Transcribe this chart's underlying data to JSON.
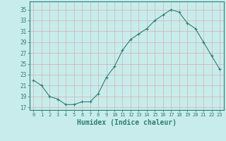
{
  "x": [
    0,
    1,
    2,
    3,
    4,
    5,
    6,
    7,
    8,
    9,
    10,
    11,
    12,
    13,
    14,
    15,
    16,
    17,
    18,
    19,
    20,
    21,
    22,
    23
  ],
  "y": [
    22,
    21,
    19,
    18.5,
    17.5,
    17.5,
    18,
    18,
    19.5,
    22.5,
    24.5,
    27.5,
    29.5,
    30.5,
    31.5,
    33,
    34,
    35,
    34.5,
    32.5,
    31.5,
    29,
    26.5,
    24
  ],
  "line_color": "#2d7d72",
  "marker": "+",
  "marker_size": 3,
  "bg_color": "#c8ecec",
  "grid_color": "#b0d8d8",
  "xlabel": "Humidex (Indice chaleur)",
  "xlabel_fontsize": 7,
  "ylabel_ticks": [
    17,
    19,
    21,
    23,
    25,
    27,
    29,
    31,
    33,
    35
  ],
  "xtick_labels": [
    "0",
    "1",
    "2",
    "3",
    "4",
    "5",
    "6",
    "7",
    "8",
    "9",
    "10",
    "11",
    "12",
    "13",
    "14",
    "15",
    "16",
    "17",
    "18",
    "19",
    "20",
    "21",
    "22",
    "23"
  ],
  "ylim": [
    16.5,
    36.5
  ],
  "xlim": [
    -0.5,
    23.5
  ],
  "tick_color": "#2d7d72",
  "axis_color": "#2d7d72"
}
